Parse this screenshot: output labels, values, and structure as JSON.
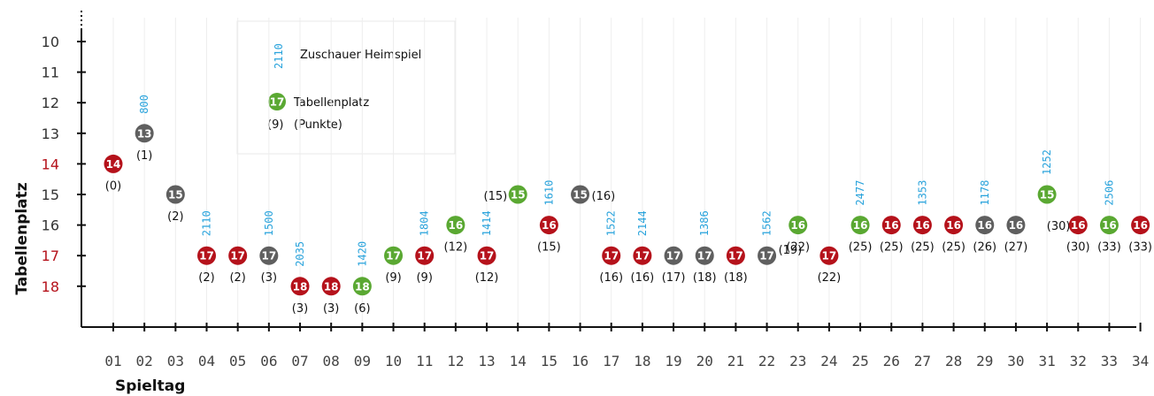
{
  "chart_data": {
    "type": "scatter",
    "xlabel": "Spieltag",
    "ylabel": "Tabellenplatz",
    "ylim": [
      10,
      18
    ],
    "y_inverted": true,
    "y_ticks": [
      "10",
      "11",
      "12",
      "13",
      "14",
      "15",
      "16",
      "17",
      "18"
    ],
    "x_ticks": [
      "01",
      "02",
      "03",
      "04",
      "05",
      "06",
      "07",
      "08",
      "09",
      "10",
      "11",
      "12",
      "13",
      "14",
      "15",
      "16",
      "17",
      "18",
      "19",
      "20",
      "21",
      "22",
      "23",
      "24",
      "25",
      "26",
      "27",
      "28",
      "29",
      "30",
      "31",
      "32",
      "33",
      "34"
    ],
    "grid": false,
    "legend_position": "top-left",
    "legend": {
      "attendance_sample": "2110",
      "attendance_label": "Zuschauer Heimspiel",
      "marker_sample": "17",
      "marker_label": "Tabellenplatz",
      "points_sample": "(9)",
      "points_label": "(Punkte)"
    },
    "colors": {
      "win": "#b5121b",
      "draw": "#5f5f5f",
      "loss": "#5aa832",
      "attendance": "#29a3dc",
      "axis": "#111111"
    },
    "result_key": [
      "win",
      "draw",
      "loss"
    ],
    "matches": [
      {
        "day": "01",
        "place": 14,
        "points": 0,
        "result": "win",
        "home_attendance": null
      },
      {
        "day": "02",
        "place": 13,
        "points": 1,
        "result": "draw",
        "home_attendance": 800
      },
      {
        "day": "03",
        "place": 15,
        "points": 2,
        "result": "draw",
        "home_attendance": null
      },
      {
        "day": "04",
        "place": 17,
        "points": 2,
        "result": "win",
        "home_attendance": 2110
      },
      {
        "day": "05",
        "place": 17,
        "points": 2,
        "result": "win",
        "home_attendance": null
      },
      {
        "day": "06",
        "place": 17,
        "points": 3,
        "result": "draw",
        "home_attendance": 1500
      },
      {
        "day": "07",
        "place": 18,
        "points": 3,
        "result": "win",
        "home_attendance": 2035
      },
      {
        "day": "08",
        "place": 18,
        "points": 3,
        "result": "win",
        "home_attendance": null
      },
      {
        "day": "09",
        "place": 18,
        "points": 6,
        "result": "loss",
        "home_attendance": 1420
      },
      {
        "day": "10",
        "place": 17,
        "points": 9,
        "result": "loss",
        "home_attendance": null
      },
      {
        "day": "11",
        "place": 17,
        "points": 9,
        "result": "win",
        "home_attendance": 1804
      },
      {
        "day": "12",
        "place": 16,
        "points": 12,
        "result": "loss",
        "home_attendance": null
      },
      {
        "day": "13",
        "place": 17,
        "points": 12,
        "result": "win",
        "home_attendance": 1414
      },
      {
        "day": "14",
        "place": 15,
        "points": 15,
        "result": "loss",
        "home_attendance": null
      },
      {
        "day": "15",
        "place": 16,
        "points": 15,
        "result": "win",
        "home_attendance": 1610
      },
      {
        "day": "16",
        "place": 15,
        "points": 16,
        "result": "draw",
        "home_attendance": null
      },
      {
        "day": "17",
        "place": 17,
        "points": 16,
        "result": "win",
        "home_attendance": 1522
      },
      {
        "day": "18",
        "place": 17,
        "points": 16,
        "result": "win",
        "home_attendance": 2144
      },
      {
        "day": "19",
        "place": 17,
        "points": 17,
        "result": "draw",
        "home_attendance": null
      },
      {
        "day": "20",
        "place": 17,
        "points": 18,
        "result": "draw",
        "home_attendance": 1386
      },
      {
        "day": "21",
        "place": 17,
        "points": 18,
        "result": "win",
        "home_attendance": null
      },
      {
        "day": "22",
        "place": 17,
        "points": 19,
        "result": "draw",
        "home_attendance": 1562
      },
      {
        "day": "23",
        "place": 16,
        "points": 22,
        "result": "loss",
        "home_attendance": null
      },
      {
        "day": "24",
        "place": 17,
        "points": 22,
        "result": "win",
        "home_attendance": null
      },
      {
        "day": "25",
        "place": 16,
        "points": 25,
        "result": "loss",
        "home_attendance": 2477
      },
      {
        "day": "26",
        "place": 16,
        "points": 25,
        "result": "win",
        "home_attendance": null
      },
      {
        "day": "27",
        "place": 16,
        "points": 25,
        "result": "win",
        "home_attendance": 1353
      },
      {
        "day": "28",
        "place": 16,
        "points": 25,
        "result": "win",
        "home_attendance": null
      },
      {
        "day": "29",
        "place": 16,
        "points": 26,
        "result": "draw",
        "home_attendance": 1178
      },
      {
        "day": "30",
        "place": 16,
        "points": 27,
        "result": "draw",
        "home_attendance": null
      },
      {
        "day": "31",
        "place": 15,
        "points": 30,
        "result": "loss",
        "home_attendance": 1252
      },
      {
        "day": "32",
        "place": 16,
        "points": 30,
        "result": "win",
        "home_attendance": null
      },
      {
        "day": "33",
        "place": 16,
        "points": 33,
        "result": "loss",
        "home_attendance": 2506
      },
      {
        "day": "34",
        "place": 16,
        "points": 33,
        "result": "win",
        "home_attendance": null
      }
    ]
  }
}
